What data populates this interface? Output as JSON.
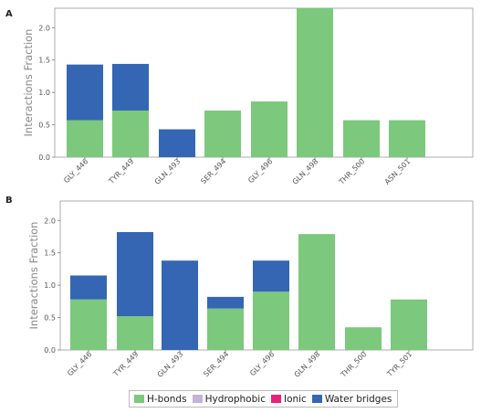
{
  "colors": {
    "hbonds": "#7cc87c",
    "hydrophobic": "#c3b3d9",
    "ionic": "#e8217a",
    "water_bridges": "#3466b3"
  },
  "legend": [
    {
      "label": "H-bonds",
      "color_key": "hbonds"
    },
    {
      "label": "Hydrophobic",
      "color_key": "hydrophobic"
    },
    {
      "label": "Ionic",
      "color_key": "ionic"
    },
    {
      "label": "Water bridges",
      "color_key": "water_bridges"
    }
  ],
  "chart_data": [
    {
      "type": "bar",
      "stacked": true,
      "panel_label": "A",
      "ylabel": "Interactions Fraction",
      "ylim": [
        0,
        2.3
      ],
      "yticks": [
        "0.0",
        "0.5",
        "1.0",
        "1.5",
        "2.0"
      ],
      "categories": [
        "GLY_446",
        "TYR_449",
        "GLN_493",
        "SER_494",
        "GLY_496",
        "GLN_498",
        "THR_500",
        "ASN_501"
      ],
      "series": [
        {
          "name": "H-bonds",
          "color_key": "hbonds",
          "values": [
            0.57,
            0.72,
            0.0,
            0.72,
            0.86,
            2.3,
            0.57,
            0.57
          ]
        },
        {
          "name": "Water bridges",
          "color_key": "water_bridges",
          "values": [
            0.86,
            0.72,
            0.43,
            0.0,
            0.0,
            0.0,
            0.0,
            0.0
          ]
        }
      ]
    },
    {
      "type": "bar",
      "stacked": true,
      "panel_label": "B",
      "ylabel": "Interactions Fraction",
      "ylim": [
        0,
        2.3
      ],
      "yticks": [
        "0.0",
        "0.5",
        "1.0",
        "1.5",
        "2.0"
      ],
      "categories": [
        "GLY_446",
        "TYR_449",
        "GLN_493",
        "SER_494",
        "GLY_496",
        "GLN_498",
        "THR_500",
        "TYR_501"
      ],
      "series": [
        {
          "name": "H-bonds",
          "color_key": "hbonds",
          "values": [
            0.78,
            0.52,
            0.0,
            0.64,
            0.9,
            1.79,
            0.35,
            0.78
          ]
        },
        {
          "name": "Water bridges",
          "color_key": "water_bridges",
          "values": [
            0.37,
            1.3,
            1.38,
            0.18,
            0.48,
            0.0,
            0.0,
            0.0
          ]
        }
      ]
    }
  ]
}
